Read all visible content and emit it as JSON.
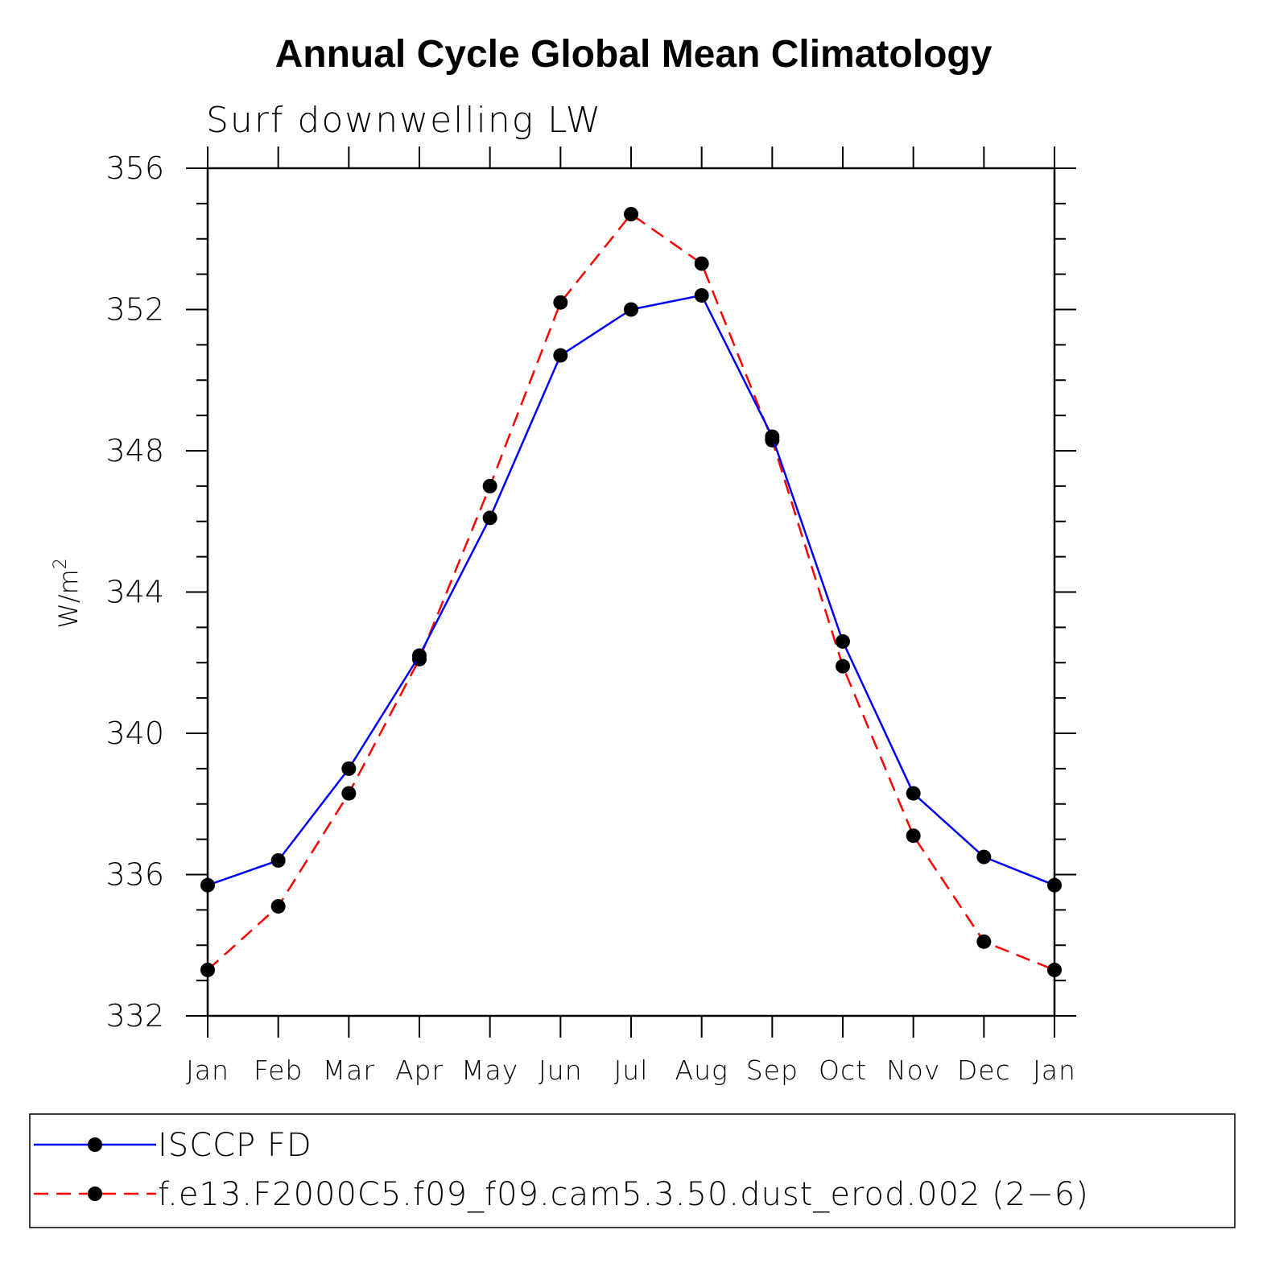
{
  "chart_data": {
    "type": "line",
    "title": "Annual Cycle Global Mean Climatology",
    "subtitle": "Surf downwelling LW",
    "ylabel": "W/m",
    "ylabel_sup": "2",
    "xlabel": "",
    "categories": [
      "Jan",
      "Feb",
      "Mar",
      "Apr",
      "May",
      "Jun",
      "Jul",
      "Aug",
      "Sep",
      "Oct",
      "Nov",
      "Dec",
      "Jan"
    ],
    "ylim": [
      332,
      356
    ],
    "yticks": [
      "332",
      "336",
      "340",
      "344",
      "348",
      "352",
      "356"
    ],
    "grid": false,
    "legend_placement": "bottom",
    "series": [
      {
        "name": "ISCCP FD",
        "color": "#0000ff",
        "dash": "solid",
        "values": [
          335.7,
          336.4,
          339.0,
          342.2,
          346.1,
          350.7,
          352.0,
          352.4,
          348.4,
          342.6,
          338.3,
          336.5,
          335.7
        ]
      },
      {
        "name": "f.e13.F2000C5.f09_f09.cam5.3.50.dust_erod.002 (2−6)",
        "color": "#ff0000",
        "dash": "dashed",
        "values": [
          333.3,
          335.1,
          338.3,
          342.1,
          347.0,
          352.2,
          354.7,
          353.3,
          348.3,
          341.9,
          337.1,
          334.1,
          333.3
        ]
      }
    ]
  }
}
